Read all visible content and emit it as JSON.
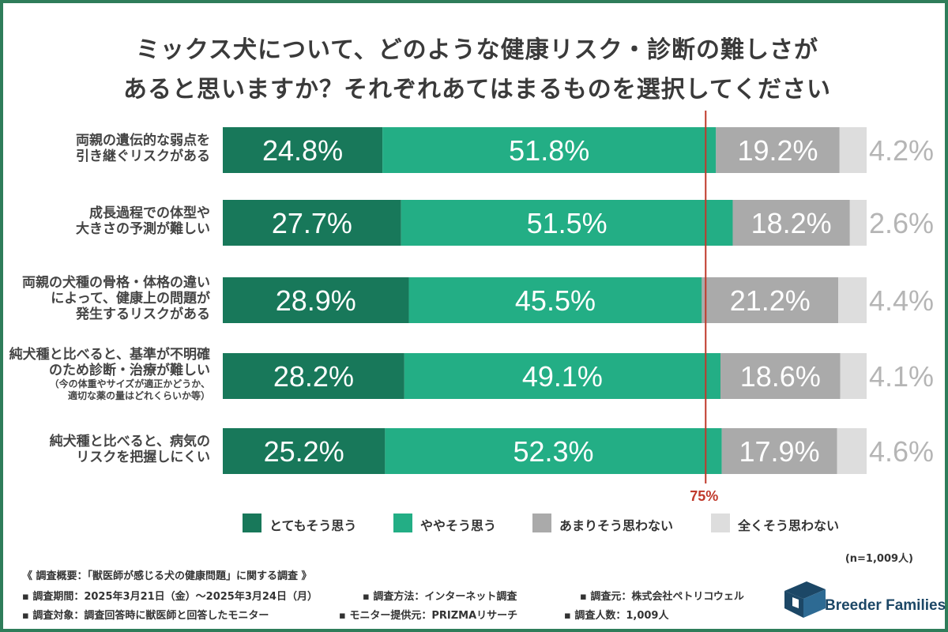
{
  "title": {
    "line1": "ミックス犬について、どのような健康リスク・診断の難しさが",
    "line2": "あると思いますか？それぞれあてはまるものを選択してください"
  },
  "chart_data": {
    "type": "bar",
    "orientation": "horizontal",
    "stacked": true,
    "percent_stacked": true,
    "categories": [
      {
        "lines": [
          "両親の遺伝的な弱点を",
          "引き継ぐリスクがある"
        ],
        "note": []
      },
      {
        "lines": [
          "成長過程での体型や",
          "大きさの予測が難しい"
        ],
        "note": []
      },
      {
        "lines": [
          "両親の犬種の骨格・体格の違い",
          "によって、健康上の問題が",
          "発生するリスクがある"
        ],
        "note": []
      },
      {
        "lines": [
          "純犬種と比べると、基準が不明確",
          "のため診断・治療が難しい"
        ],
        "note": [
          "（今の体重やサイズが適正かどうか、",
          "適切な薬の量はどれくらいか等）"
        ]
      },
      {
        "lines": [
          "純犬種と比べると、病気の",
          "リスクを把握しにくい"
        ],
        "note": []
      }
    ],
    "series": [
      {
        "name": "とてもそう思う",
        "color": "#18785a",
        "label_color": "#ffffff",
        "values": [
          24.8,
          27.7,
          28.9,
          28.2,
          25.2
        ],
        "labels": [
          "24.8%",
          "27.7%",
          "28.9%",
          "28.2%",
          "25.2%"
        ]
      },
      {
        "name": "ややそう思う",
        "color": "#23ae85",
        "label_color": "#ffffff",
        "values": [
          51.8,
          51.5,
          45.5,
          49.1,
          52.3
        ],
        "labels": [
          "51.8%",
          "51.5%",
          "45.5%",
          "49.1%",
          "52.3%"
        ]
      },
      {
        "name": "あまりそう思わない",
        "color": "#aaaaaa",
        "label_color": "#ffffff",
        "values": [
          19.2,
          18.2,
          21.2,
          18.6,
          17.9
        ],
        "labels": [
          "19.2%",
          "18.2%",
          "21.2%",
          "18.6%",
          "17.9%"
        ]
      },
      {
        "name": "全くそう思わない",
        "color": "#dddddd",
        "label_color": "#b5b5b5",
        "values": [
          4.2,
          2.6,
          4.4,
          4.1,
          4.6
        ],
        "labels": [
          "4.2%",
          "2.6%",
          "4.4%",
          "4.1%",
          "4.6%"
        ]
      }
    ],
    "xlim": [
      0,
      100
    ],
    "reference_line": {
      "value": 75,
      "label": "75%",
      "color": "#c0392b"
    },
    "legend_position": "bottom"
  },
  "n_label": "(n=1,009人)",
  "footer": {
    "heading": "《 調査概要：「獣医師が感じる犬の健康問題」に関する調査 》",
    "row1": [
      "▪ 調査期間：2025年3月21日（金）〜2025年3月24日（月）",
      "▪ 調査方法：インターネット調査",
      "▪ 調査元：株式会社ペトリコウェル"
    ],
    "row2": [
      "▪ 調査対象：調査回答時に獣医師と回答したモニター",
      "▪ モニター提供元：PRIZMAリサーチ",
      "▪ 調査人数：1,009人"
    ]
  },
  "logo": {
    "text": "Breeder Families",
    "color": "#1c4766"
  }
}
